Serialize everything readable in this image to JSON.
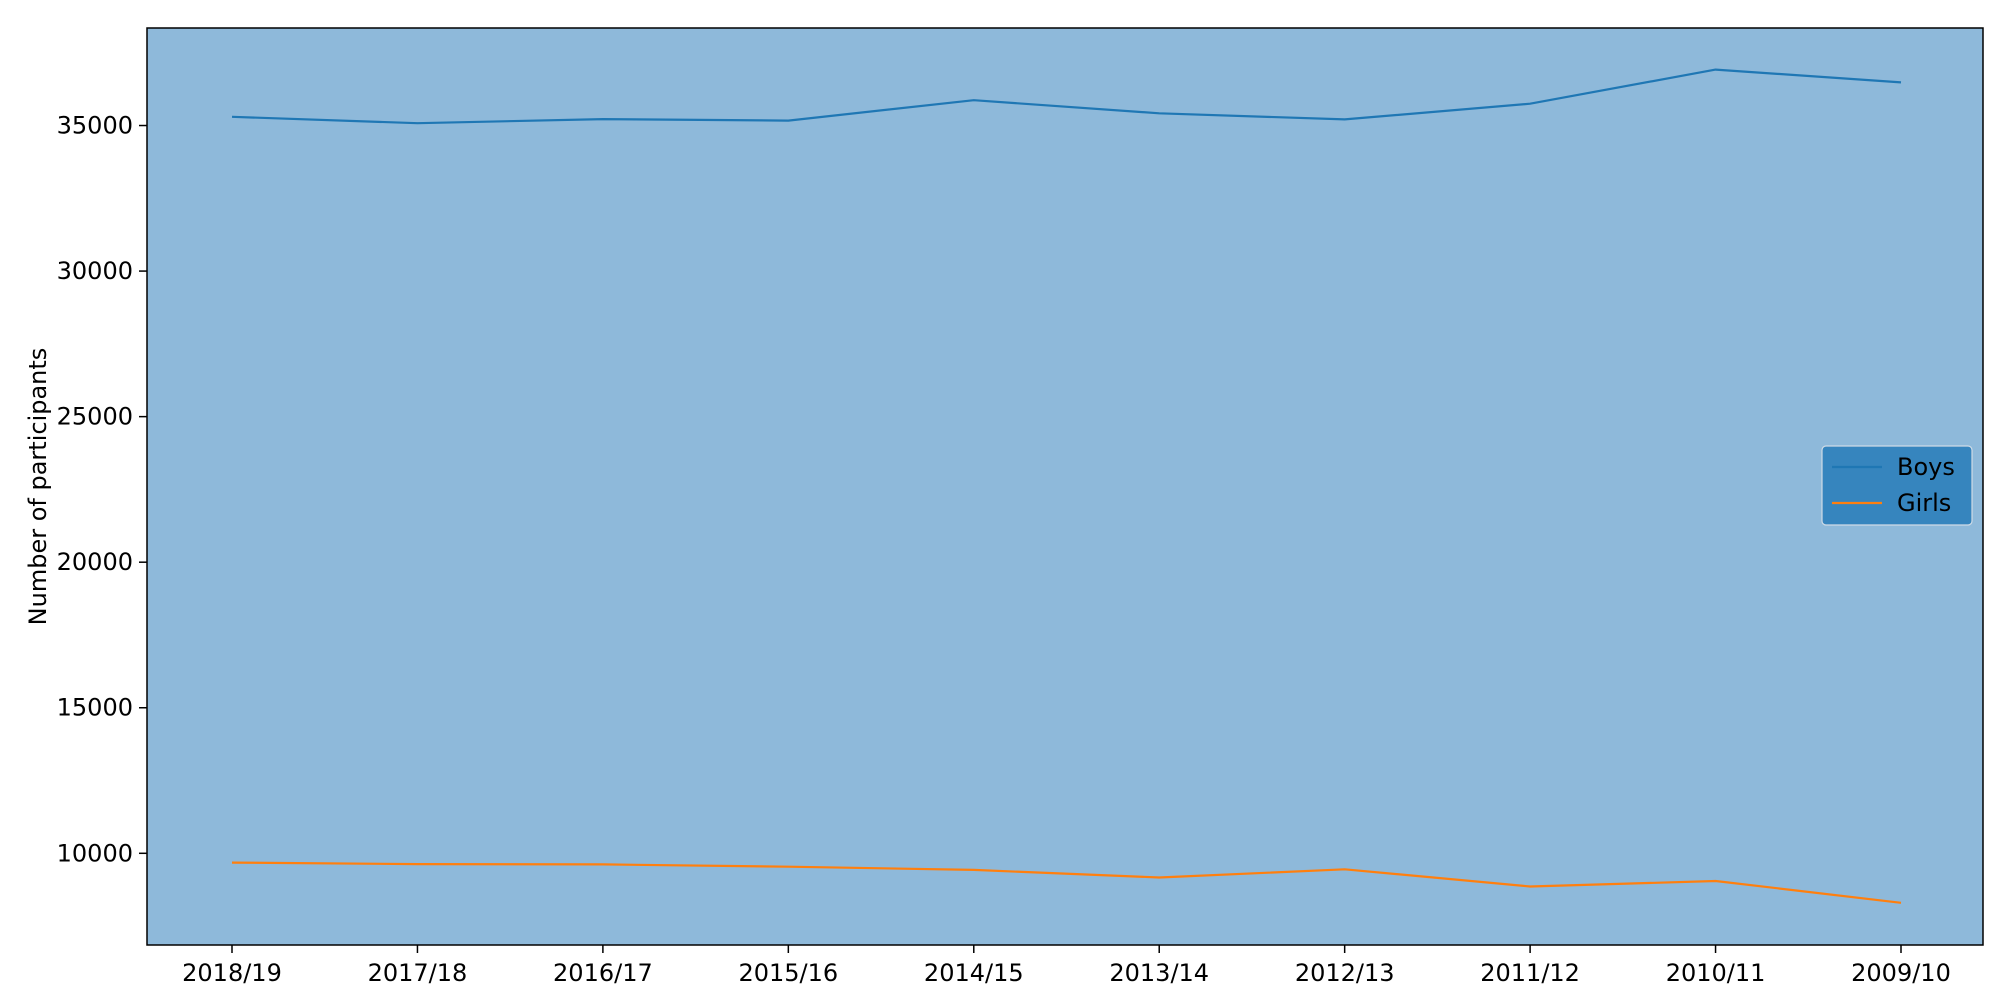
{
  "chart_data": {
    "type": "line",
    "title": "",
    "xlabel": "",
    "ylabel": "Number of participants",
    "categories": [
      "2018/19",
      "2017/18",
      "2016/17",
      "2015/16",
      "2014/15",
      "2013/14",
      "2012/13",
      "2011/12",
      "2010/11",
      "2009/10"
    ],
    "series": [
      {
        "name": "Boys",
        "color": "#1f77b4",
        "values": [
          35300,
          35080,
          35220,
          35170,
          35870,
          35420,
          35210,
          35750,
          36920,
          36480
        ]
      },
      {
        "name": "Girls",
        "color": "#ff7f0e",
        "values": [
          9680,
          9630,
          9620,
          9540,
          9430,
          9170,
          9450,
          8860,
          9050,
          8300
        ]
      }
    ],
    "yticks": [
      10000,
      15000,
      20000,
      25000,
      30000,
      35000
    ],
    "ylim": [
      6850,
      38350
    ],
    "grid": false,
    "legend_position": "center-right",
    "plot_background": "#8eb9da",
    "legend_background": "#3685be"
  }
}
